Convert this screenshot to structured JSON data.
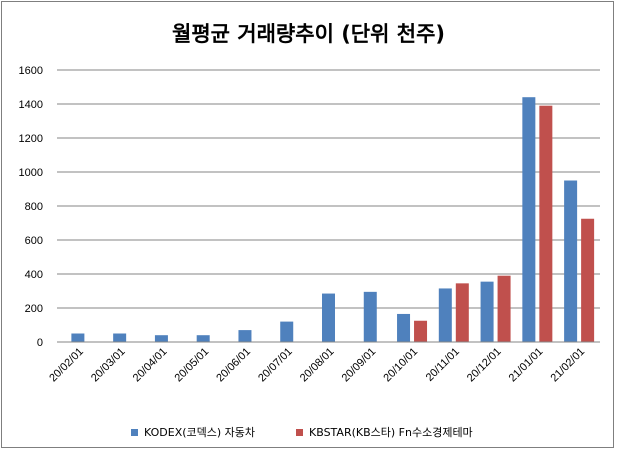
{
  "chart_data": {
    "type": "bar",
    "title": "월평균 거래량추이 (단위 천주)",
    "xlabel": "",
    "ylabel": "",
    "ylim": [
      0,
      1600
    ],
    "yticks": [
      0,
      200,
      400,
      600,
      800,
      1000,
      1200,
      1400,
      1600
    ],
    "grid": true,
    "legend_position": "bottom",
    "categories": [
      "20/02/01",
      "20/03/01",
      "20/04/01",
      "20/05/01",
      "20/06/01",
      "20/07/01",
      "20/08/01",
      "20/09/01",
      "20/10/01",
      "20/11/01",
      "20/12/01",
      "21/01/01",
      "21/02/01"
    ],
    "series": [
      {
        "name": "KODEX(코덱스) 자동차",
        "color": "#4f81bd",
        "values": [
          50,
          50,
          40,
          40,
          70,
          120,
          285,
          295,
          165,
          315,
          355,
          1440,
          950
        ]
      },
      {
        "name": "KBSTAR(KB스타) Fn수소경제테마",
        "color": "#c0504d",
        "values": [
          null,
          null,
          null,
          null,
          null,
          null,
          null,
          null,
          125,
          345,
          390,
          1390,
          725
        ]
      }
    ]
  }
}
